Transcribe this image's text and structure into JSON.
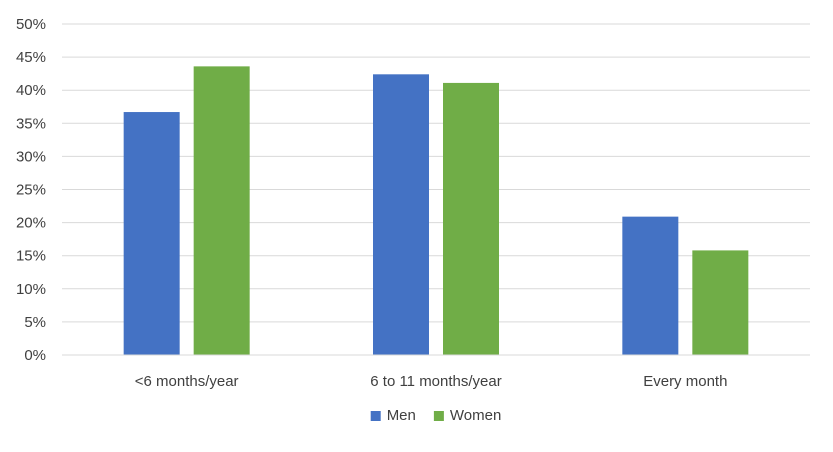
{
  "chart_data": {
    "type": "bar",
    "title": "",
    "xlabel": "",
    "ylabel": "",
    "categories": [
      "<6 months/year",
      "6 to 11 months/year",
      "Every month"
    ],
    "series": [
      {
        "name": "Men",
        "color": "#4472C4",
        "values": [
          0.367,
          0.424,
          0.209
        ]
      },
      {
        "name": "Women",
        "color": "#70AD47",
        "values": [
          0.436,
          0.411,
          0.158
        ]
      }
    ],
    "ylim": [
      0,
      0.5
    ],
    "y_ticks": [
      0,
      0.05,
      0.1,
      0.15,
      0.2,
      0.25,
      0.3,
      0.35,
      0.4,
      0.45,
      0.5
    ],
    "y_tick_labels": [
      "0%",
      "5%",
      "10%",
      "15%",
      "20%",
      "25%",
      "30%",
      "35%",
      "40%",
      "45%",
      "50%"
    ],
    "y_format": "percent",
    "grid": true,
    "gridline_color": "#D9D9D9",
    "legend_position": "bottom"
  }
}
